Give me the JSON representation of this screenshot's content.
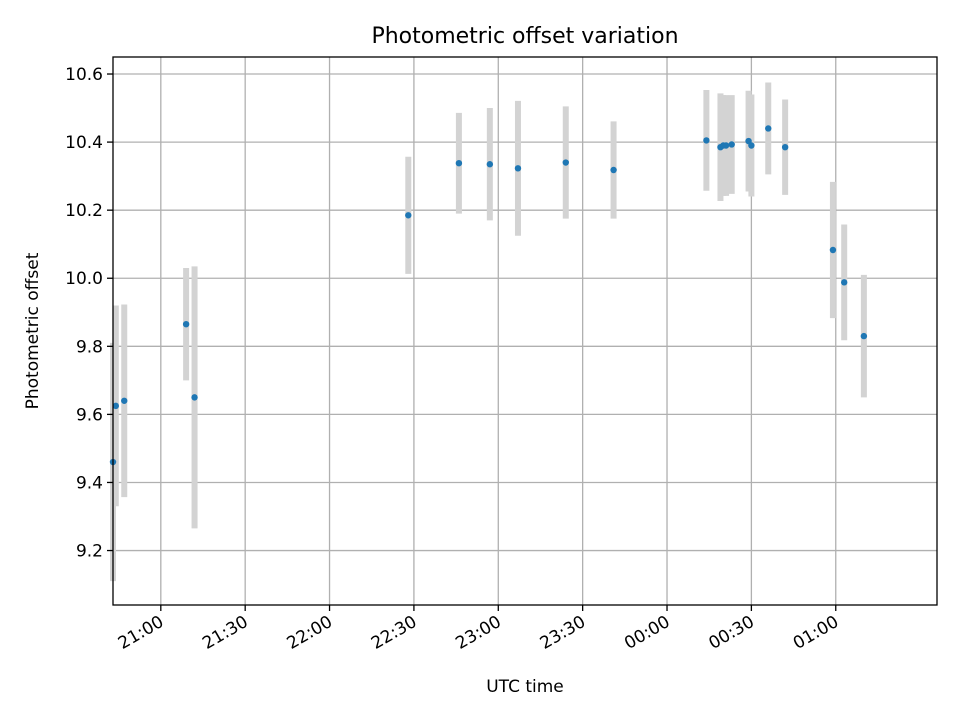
{
  "chart_data": {
    "type": "scatter",
    "title": "Photometric offset variation",
    "xlabel": "UTC time",
    "ylabel": "Photometric offset",
    "x_units": "minutes from 20:30 UTC",
    "xlim": [
      13,
      306
    ],
    "ylim": [
      9.04,
      10.65
    ],
    "x_ticks": [
      {
        "value": 30,
        "label": "21:00"
      },
      {
        "value": 60,
        "label": "21:30"
      },
      {
        "value": 90,
        "label": "22:00"
      },
      {
        "value": 120,
        "label": "22:30"
      },
      {
        "value": 150,
        "label": "23:00"
      },
      {
        "value": 180,
        "label": "23:30"
      },
      {
        "value": 210,
        "label": "00:00"
      },
      {
        "value": 240,
        "label": "00:30"
      },
      {
        "value": 270,
        "label": "01:00"
      }
    ],
    "y_ticks": [
      {
        "value": 9.2,
        "label": "9.2"
      },
      {
        "value": 9.4,
        "label": "9.4"
      },
      {
        "value": 9.6,
        "label": "9.6"
      },
      {
        "value": 9.8,
        "label": "9.8"
      },
      {
        "value": 10.0,
        "label": "10.0"
      },
      {
        "value": 10.2,
        "label": "10.2"
      },
      {
        "value": 10.4,
        "label": "10.4"
      },
      {
        "value": 10.6,
        "label": "10.6"
      }
    ],
    "grid": true,
    "point_color": "#1f77b4",
    "errorbar_color": "#d3d3d3",
    "points": [
      {
        "time": "20:43",
        "y": 9.46,
        "err": 0.35
      },
      {
        "time": "20:44",
        "y": 9.625,
        "err": 0.295
      },
      {
        "time": "20:47",
        "y": 9.64,
        "err": 0.283
      },
      {
        "time": "21:09",
        "y": 9.865,
        "err": 0.165
      },
      {
        "time": "21:12",
        "y": 9.65,
        "err": 0.385
      },
      {
        "time": "22:28",
        "y": 10.185,
        "err": 0.172
      },
      {
        "time": "22:46",
        "y": 10.338,
        "err": 0.148
      },
      {
        "time": "22:57",
        "y": 10.335,
        "err": 0.165
      },
      {
        "time": "23:07",
        "y": 10.323,
        "err": 0.198
      },
      {
        "time": "23:24",
        "y": 10.34,
        "err": 0.165
      },
      {
        "time": "23:41",
        "y": 10.318,
        "err": 0.143
      },
      {
        "time": "00:14",
        "y": 10.405,
        "err": 0.148
      },
      {
        "time": "00:19",
        "y": 10.385,
        "err": 0.158
      },
      {
        "time": "00:20",
        "y": 10.39,
        "err": 0.148
      },
      {
        "time": "00:21",
        "y": 10.39,
        "err": 0.148
      },
      {
        "time": "00:23",
        "y": 10.393,
        "err": 0.145
      },
      {
        "time": "00:29",
        "y": 10.403,
        "err": 0.148
      },
      {
        "time": "00:30",
        "y": 10.39,
        "err": 0.15
      },
      {
        "time": "00:36",
        "y": 10.44,
        "err": 0.135
      },
      {
        "time": "00:42",
        "y": 10.385,
        "err": 0.14
      },
      {
        "time": "00:59",
        "y": 10.083,
        "err": 0.2
      },
      {
        "time": "01:03",
        "y": 9.988,
        "err": 0.17
      },
      {
        "time": "01:10",
        "y": 9.83,
        "err": 0.18
      }
    ]
  }
}
